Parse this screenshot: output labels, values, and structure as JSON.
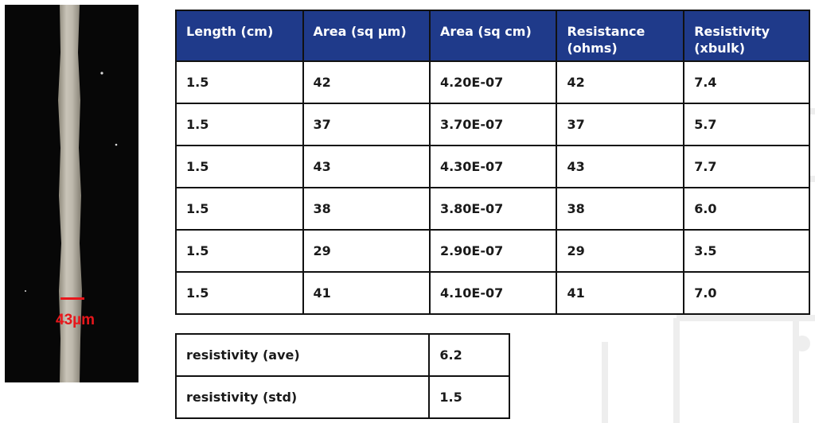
{
  "micrograph": {
    "scale_label": "43µm",
    "scale_color": "#e8161b"
  },
  "table": {
    "header_color": "#1f3a8a",
    "headers": [
      "Length (cm)",
      "Area (sq µm)",
      "Area (sq cm)",
      "Resistance (ohms)",
      "Resistivity (xbulk)"
    ],
    "rows": [
      [
        "1.5",
        "42",
        "4.20E-07",
        "42",
        "7.4"
      ],
      [
        "1.5",
        "37",
        "3.70E-07",
        "37",
        "5.7"
      ],
      [
        "1.5",
        "43",
        "4.30E-07",
        "43",
        "7.7"
      ],
      [
        "1.5",
        "38",
        "3.80E-07",
        "38",
        "6.0"
      ],
      [
        "1.5",
        "29",
        "2.90E-07",
        "29",
        "3.5"
      ],
      [
        "1.5",
        "41",
        "4.10E-07",
        "41",
        "7.0"
      ]
    ]
  },
  "summary": [
    {
      "label": "resistivity (ave)",
      "value": "6.2"
    },
    {
      "label": "resistivity (std)",
      "value": "1.5"
    }
  ]
}
